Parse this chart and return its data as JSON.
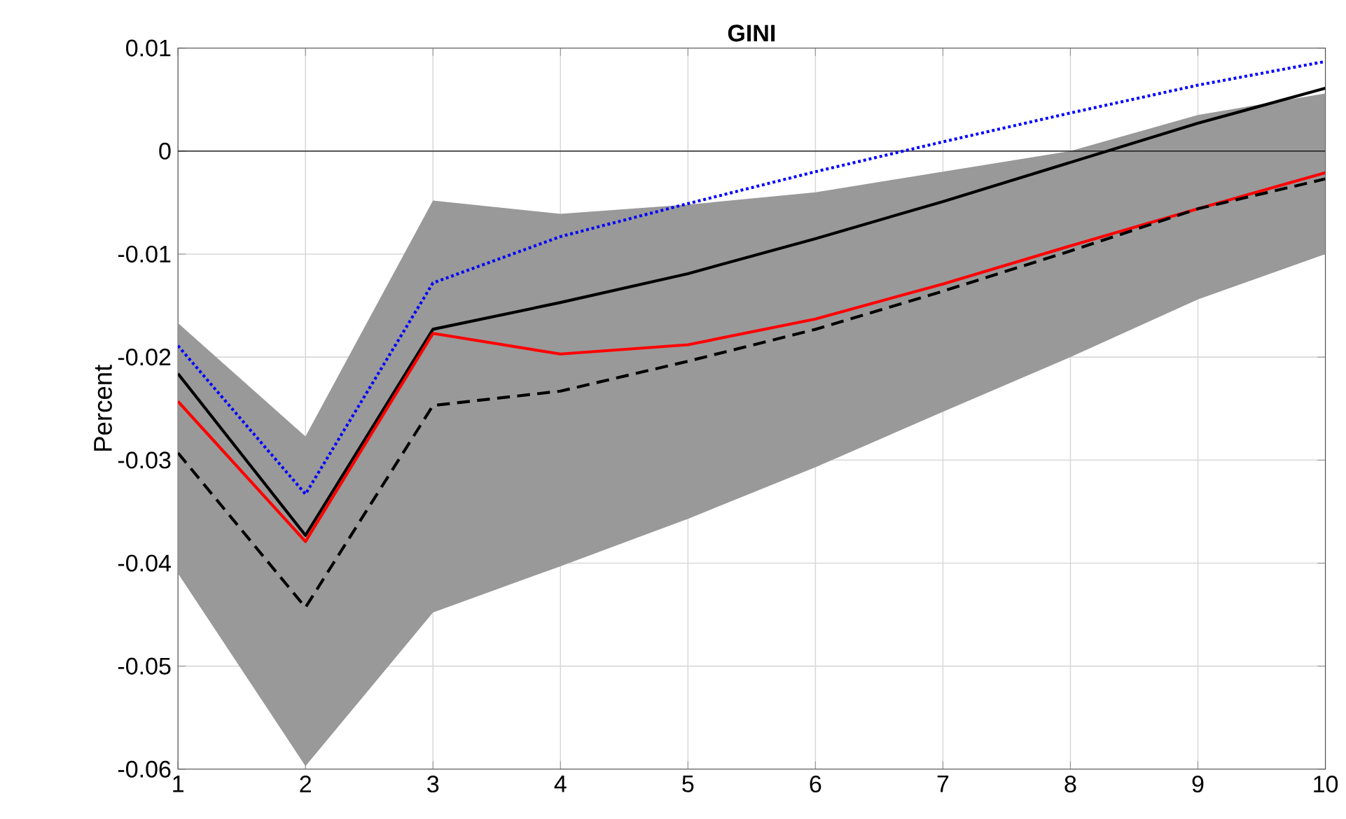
{
  "chart_data": {
    "type": "line",
    "title": "GINI",
    "ylabel": "Percent",
    "x": [
      1,
      2,
      3,
      4,
      5,
      6,
      7,
      8,
      9,
      10
    ],
    "series": [
      {
        "color": "#000000",
        "line_style": "solid",
        "values": [
          -0.0216,
          -0.0373,
          -0.0173,
          -0.0147,
          -0.0119,
          -0.0085,
          -0.0049,
          -0.0011,
          0.0027,
          0.0061
        ],
        "lower": [
          -0.041,
          -0.0597,
          -0.0448,
          -0.0403,
          -0.0357,
          -0.0307,
          -0.0253,
          -0.02,
          -0.0144,
          -0.01
        ],
        "upper": [
          -0.0167,
          -0.0277,
          -0.0048,
          -0.0061,
          -0.0052,
          -0.004,
          -0.002,
          0.0,
          0.0035,
          0.0056
        ]
      },
      {
        "color": "#ff0000",
        "line_style": "solid",
        "values": [
          -0.0243,
          -0.0379,
          -0.0177,
          -0.0197,
          -0.0188,
          -0.0163,
          -0.0129,
          -0.0092,
          -0.0056,
          -0.0021
        ]
      },
      {
        "color": "#0000ff",
        "line_style": "dotted",
        "values": [
          -0.0189,
          -0.0333,
          -0.0128,
          -0.0083,
          -0.0051,
          -0.002,
          0.0009,
          0.0037,
          0.0064,
          0.0087
        ]
      },
      {
        "color": "#000000",
        "line_style": "dashed",
        "values": [
          -0.0293,
          -0.0443,
          -0.0247,
          -0.0233,
          -0.0204,
          -0.0173,
          -0.0136,
          -0.0097,
          -0.0056,
          -0.0027
        ]
      }
    ],
    "xlim": [
      1,
      10
    ],
    "ylim": [
      -0.06,
      0.01
    ],
    "xticks": [
      1,
      2,
      3,
      4,
      5,
      6,
      7,
      8,
      9,
      10
    ],
    "yticks": [
      -0.06,
      -0.05,
      -0.04,
      -0.03,
      -0.02,
      -0.01,
      0,
      0.01
    ],
    "ref_lines": [
      {
        "axis": "y",
        "value": 0,
        "color": "#000000"
      }
    ],
    "grid": true
  }
}
